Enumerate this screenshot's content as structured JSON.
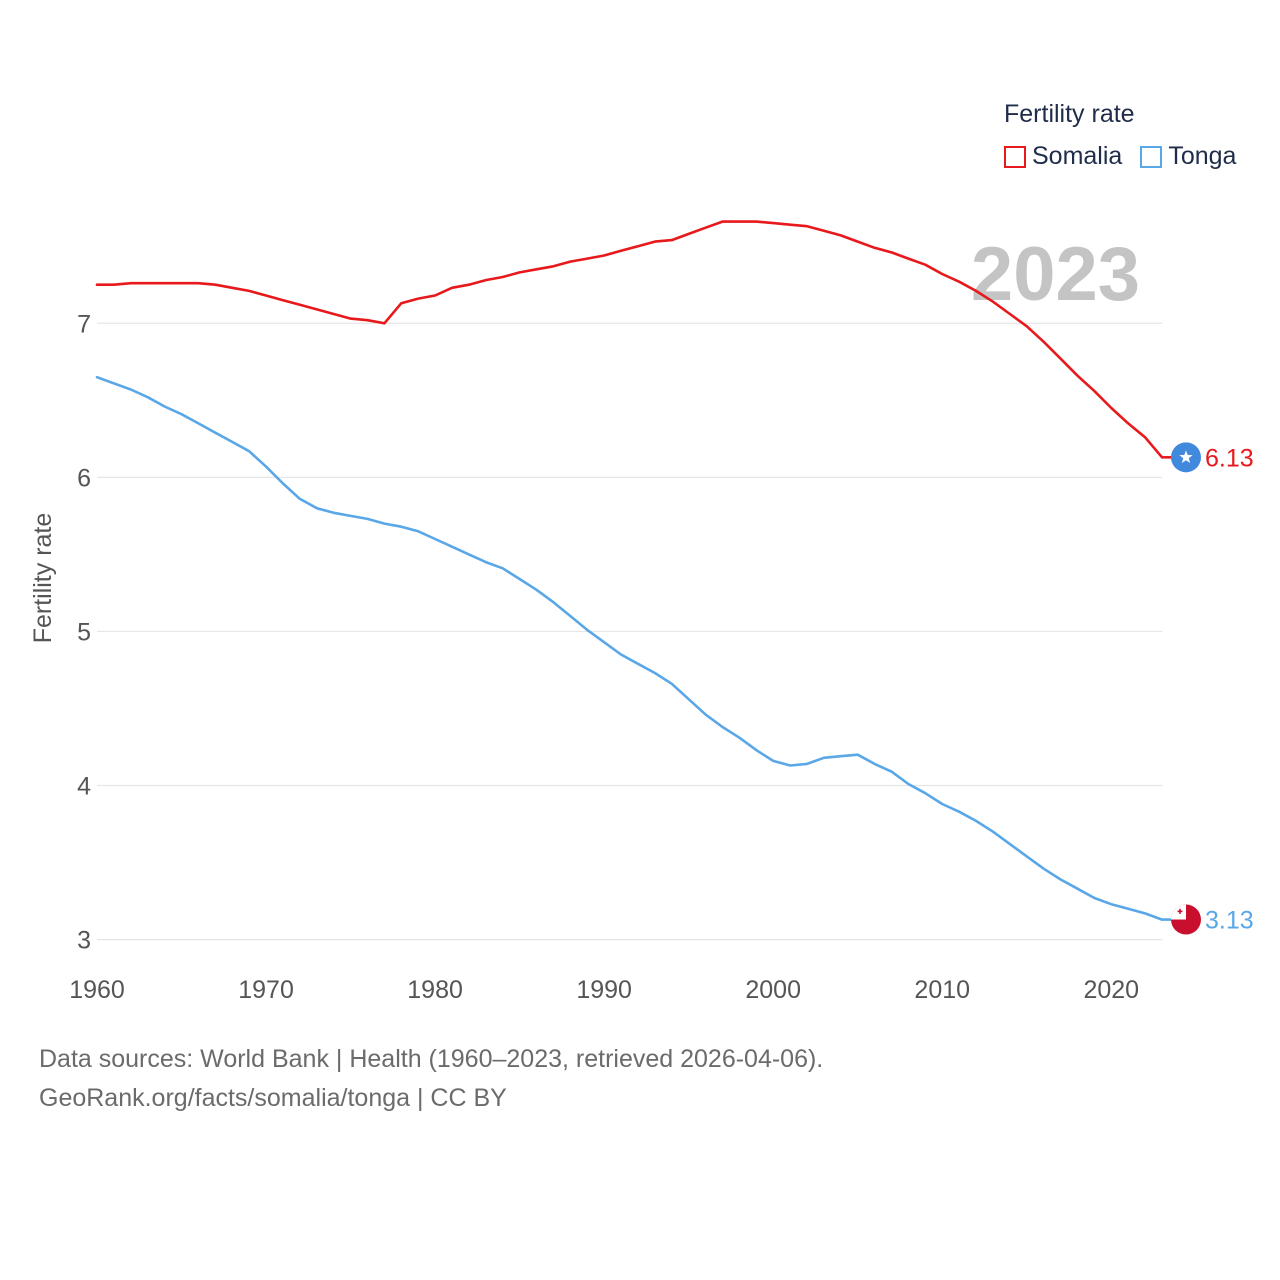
{
  "chart_data": {
    "type": "line",
    "ylabel": "Fertility rate",
    "xlabel": "",
    "legend_title": "Fertility rate",
    "legend_position": "top-right",
    "year_watermark": "2023",
    "xlim": [
      1960,
      2023
    ],
    "ylim": [
      2.9,
      7.8
    ],
    "x_ticks": [
      1960,
      1970,
      1980,
      1990,
      2000,
      2010,
      2020
    ],
    "y_ticks": [
      3,
      4,
      5,
      6,
      7
    ],
    "grid": true,
    "series": [
      {
        "name": "Somalia",
        "color": "#e8191c",
        "end_label": "6.13",
        "flag": "somalia-flag",
        "x": [
          1960,
          1961,
          1962,
          1963,
          1964,
          1965,
          1966,
          1967,
          1968,
          1969,
          1970,
          1971,
          1972,
          1973,
          1974,
          1975,
          1976,
          1977,
          1978,
          1979,
          1980,
          1981,
          1982,
          1983,
          1984,
          1985,
          1986,
          1987,
          1988,
          1989,
          1990,
          1991,
          1992,
          1993,
          1994,
          1995,
          1996,
          1997,
          1998,
          1999,
          2000,
          2001,
          2002,
          2003,
          2004,
          2005,
          2006,
          2007,
          2008,
          2009,
          2010,
          2011,
          2012,
          2013,
          2014,
          2015,
          2016,
          2017,
          2018,
          2019,
          2020,
          2021,
          2022,
          2023
        ],
        "values": [
          7.25,
          7.25,
          7.26,
          7.26,
          7.26,
          7.26,
          7.26,
          7.25,
          7.23,
          7.21,
          7.18,
          7.15,
          7.12,
          7.09,
          7.06,
          7.03,
          7.02,
          7.0,
          7.13,
          7.16,
          7.18,
          7.23,
          7.25,
          7.28,
          7.3,
          7.33,
          7.35,
          7.37,
          7.4,
          7.42,
          7.44,
          7.47,
          7.5,
          7.53,
          7.54,
          7.58,
          7.62,
          7.66,
          7.66,
          7.66,
          7.65,
          7.64,
          7.63,
          7.6,
          7.57,
          7.53,
          7.49,
          7.46,
          7.42,
          7.38,
          7.32,
          7.27,
          7.21,
          7.14,
          7.06,
          6.98,
          6.88,
          6.77,
          6.66,
          6.56,
          6.45,
          6.35,
          6.26,
          6.13
        ]
      },
      {
        "name": "Tonga",
        "color": "#5aa7e8",
        "end_label": "3.13",
        "flag": "tonga-flag",
        "x": [
          1960,
          1961,
          1962,
          1963,
          1964,
          1965,
          1966,
          1967,
          1968,
          1969,
          1970,
          1971,
          1972,
          1973,
          1974,
          1975,
          1976,
          1977,
          1978,
          1979,
          1980,
          1981,
          1982,
          1983,
          1984,
          1985,
          1986,
          1987,
          1988,
          1989,
          1990,
          1991,
          1992,
          1993,
          1994,
          1995,
          1996,
          1997,
          1998,
          1999,
          2000,
          2001,
          2002,
          2003,
          2004,
          2005,
          2006,
          2007,
          2008,
          2009,
          2010,
          2011,
          2012,
          2013,
          2014,
          2015,
          2016,
          2017,
          2018,
          2019,
          2020,
          2021,
          2022,
          2023
        ],
        "values": [
          6.65,
          6.61,
          6.57,
          6.52,
          6.46,
          6.41,
          6.35,
          6.29,
          6.23,
          6.17,
          6.07,
          5.96,
          5.86,
          5.8,
          5.77,
          5.75,
          5.73,
          5.7,
          5.68,
          5.65,
          5.6,
          5.55,
          5.5,
          5.45,
          5.41,
          5.34,
          5.27,
          5.19,
          5.1,
          5.01,
          4.93,
          4.85,
          4.79,
          4.73,
          4.66,
          4.56,
          4.46,
          4.38,
          4.31,
          4.23,
          4.16,
          4.13,
          4.14,
          4.18,
          4.19,
          4.2,
          4.14,
          4.09,
          4.01,
          3.95,
          3.88,
          3.83,
          3.77,
          3.7,
          3.62,
          3.54,
          3.46,
          3.39,
          3.33,
          3.27,
          3.23,
          3.2,
          3.17,
          3.13
        ]
      }
    ]
  },
  "footer": {
    "source_line1": "Data sources: World Bank | Health (1960–2023, retrieved 2026-04-06).",
    "source_line2": "GeoRank.org/facts/somalia/tonga | CC BY"
  }
}
